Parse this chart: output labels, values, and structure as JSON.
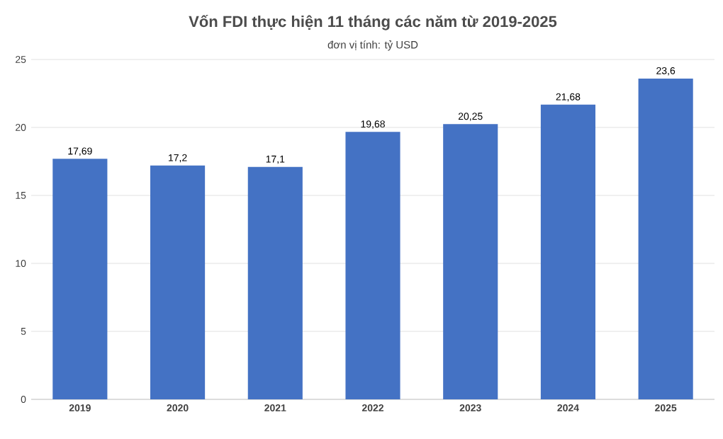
{
  "chart_data": {
    "type": "bar",
    "title": "Vốn FDI thực hiện 11 tháng các năm từ 2019-2025",
    "subtitle": "đơn vị tính: tỷ USD",
    "categories": [
      "2019",
      "2020",
      "2021",
      "2022",
      "2023",
      "2024",
      "2025"
    ],
    "values": [
      17.69,
      17.2,
      17.1,
      19.68,
      20.25,
      21.68,
      23.6
    ],
    "value_labels": [
      "17,69",
      "17,2",
      "17,1",
      "19,68",
      "20,25",
      "21,68",
      "23,6"
    ],
    "color": "#4472c4",
    "ylim": [
      0,
      25
    ],
    "yticks": [
      0,
      5,
      10,
      15,
      20,
      25
    ],
    "grid": "y"
  }
}
